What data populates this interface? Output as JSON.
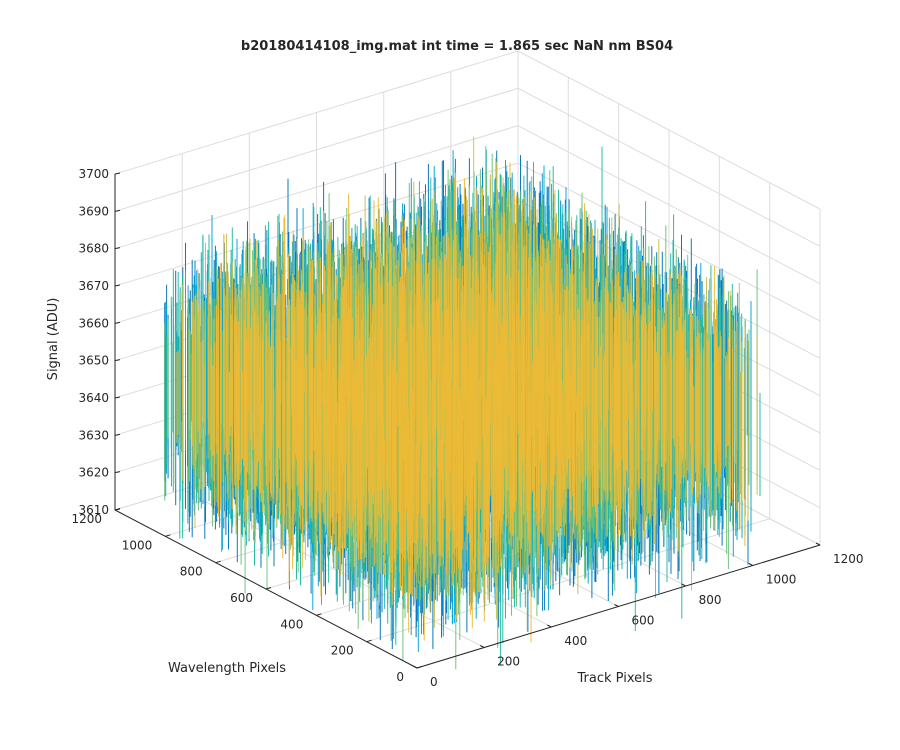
{
  "chart_data": {
    "type": "surface",
    "title": "b20180414108_img.mat int time = 1.865 sec  NaN nm BS04",
    "xlabel": "Track Pixels",
    "ylabel": "Wavelength Pixels",
    "zlabel": "Signal (ADU)",
    "xlim": [
      0,
      1200
    ],
    "ylim": [
      0,
      1200
    ],
    "zlim": [
      3610,
      3700
    ],
    "xticks": [
      "0",
      "200",
      "400",
      "600",
      "800",
      "1000",
      "1200"
    ],
    "yticks": [
      "0",
      "200",
      "400",
      "600",
      "800",
      "1000",
      "1200"
    ],
    "zticks": [
      "3610",
      "3620",
      "3630",
      "3640",
      "3650",
      "3660",
      "3670",
      "3680",
      "3690",
      "3700"
    ],
    "x_extent": [
      0,
      1024
    ],
    "y_extent": [
      0,
      1024
    ],
    "signal_mean": 3650,
    "signal_range_approx": [
      3610,
      3700
    ],
    "grid": true,
    "colormap": "parula",
    "colors": [
      "#0072BD",
      "#00A3D6",
      "#1FB8A4",
      "#6CC177",
      "#C3BE4A",
      "#EDB935"
    ]
  }
}
